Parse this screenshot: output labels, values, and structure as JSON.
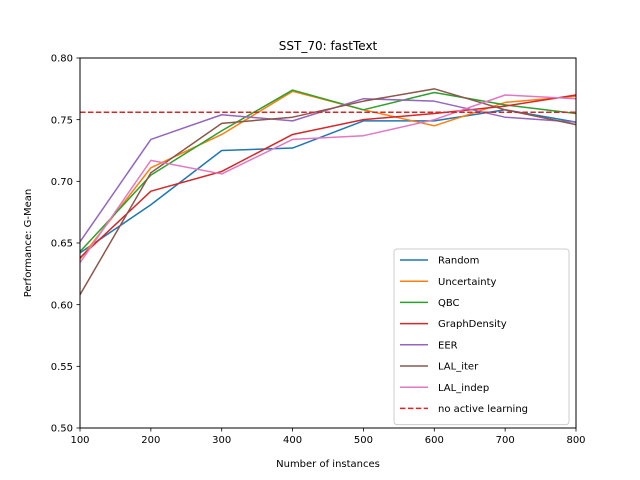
{
  "chart_data": {
    "type": "line",
    "title": "SST_70: fastText",
    "xlabel": "Number of instances",
    "ylabel": "Performance: G-Mean",
    "xlim": [
      100,
      800
    ],
    "ylim": [
      0.5,
      0.8
    ],
    "xticks": [
      "100",
      "200",
      "300",
      "400",
      "500",
      "600",
      "700",
      "800"
    ],
    "yticks": [
      "0.50",
      "0.55",
      "0.60",
      "0.65",
      "0.70",
      "0.75",
      "0.80"
    ],
    "x": [
      100,
      200,
      300,
      400,
      500,
      600,
      700,
      800
    ],
    "legend_position": "lower-right",
    "series": [
      {
        "name": "Random",
        "color": "#1f77b4",
        "values": [
          0.642,
          0.681,
          0.725,
          0.727,
          0.749,
          0.749,
          0.758,
          0.748
        ]
      },
      {
        "name": "Uncertainty",
        "color": "#ff7f0e",
        "values": [
          0.637,
          0.711,
          0.738,
          0.773,
          0.758,
          0.745,
          0.764,
          0.769
        ]
      },
      {
        "name": "QBC",
        "color": "#2ca02c",
        "values": [
          0.643,
          0.705,
          0.741,
          0.774,
          0.758,
          0.772,
          0.762,
          0.755
        ]
      },
      {
        "name": "GraphDensity",
        "color": "#d62728",
        "values": [
          0.638,
          0.692,
          0.708,
          0.738,
          0.75,
          0.755,
          0.761,
          0.77
        ]
      },
      {
        "name": "EER",
        "color": "#9467bd",
        "values": [
          0.651,
          0.734,
          0.754,
          0.749,
          0.767,
          0.765,
          0.752,
          0.748
        ]
      },
      {
        "name": "LAL_iter",
        "color": "#8c564b",
        "values": [
          0.608,
          0.707,
          0.747,
          0.752,
          0.765,
          0.775,
          0.758,
          0.746
        ]
      },
      {
        "name": "LAL_indep",
        "color": "#e377c2",
        "values": [
          0.634,
          0.717,
          0.706,
          0.734,
          0.737,
          0.75,
          0.77,
          0.767
        ]
      }
    ],
    "baseline": {
      "name": "no active learning",
      "color": "#d62728",
      "value": 0.756
    }
  }
}
